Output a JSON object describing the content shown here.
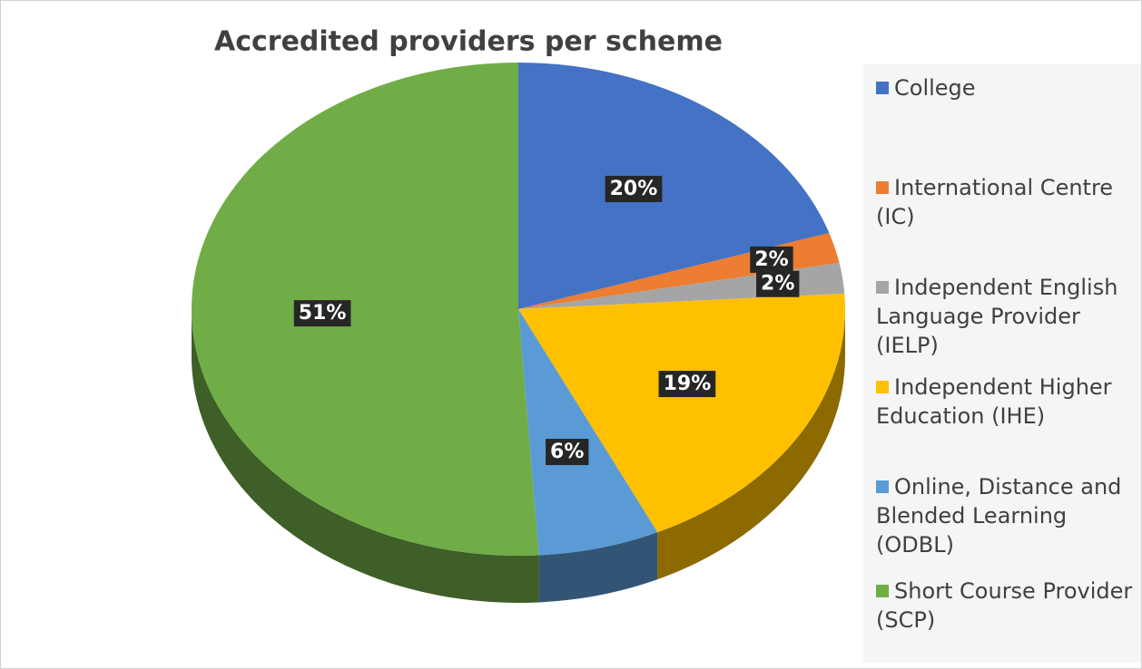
{
  "chart_data": {
    "type": "pie3d",
    "title": "Accredited providers per scheme",
    "categories": [
      "College",
      "International Centre (IC)",
      "Independent English Language Provider (IELP)",
      "Independent Higher Education (IHE)",
      "Online, Distance and Blended Learning (ODBL)",
      "Short Course Provider (SCP)"
    ],
    "values": [
      20,
      2,
      2,
      19,
      6,
      51
    ],
    "value_labels": [
      "20%",
      "2%",
      "2%",
      "19%",
      "6%",
      "51%"
    ],
    "colors": [
      "#4472c4",
      "#ed7d31",
      "#a5a5a5",
      "#ffc000",
      "#5b9bd5",
      "#70ad47"
    ],
    "legend": "right"
  }
}
